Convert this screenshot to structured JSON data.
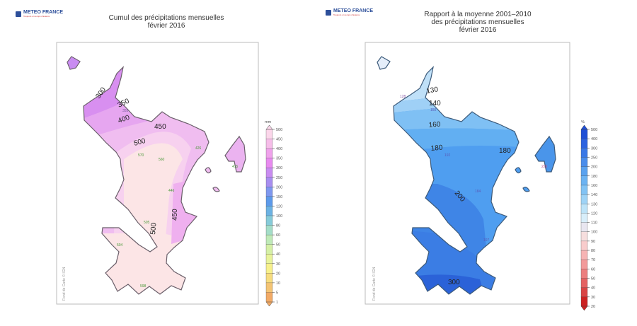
{
  "logo": {
    "name": "METEO FRANCE",
    "tagline": "Toujours un temps d'avance"
  },
  "left_map": {
    "title_line1": "Cumul des précipitations mensuelles",
    "title_line2": "février 2016",
    "legend_unit": "mm",
    "legend_ticks": [
      "500",
      "450",
      "400",
      "350",
      "300",
      "250",
      "200",
      "150",
      "120",
      "100",
      "80",
      "60",
      "50",
      "40",
      "30",
      "20",
      "10",
      "5",
      "1"
    ],
    "legend_colors": [
      "#fbd6ea",
      "#f6bde9",
      "#f0a2ec",
      "#e88af0",
      "#c98cf1",
      "#a88ef0",
      "#7f98ef",
      "#5d9aea",
      "#6cb2e3",
      "#86cbd9",
      "#a4ddc8",
      "#bfeab8",
      "#d5f0a6",
      "#e8f39a",
      "#f7f08b",
      "#f7dc7e",
      "#f4c474",
      "#f2aa66"
    ],
    "contour_labels": [
      "300",
      "350",
      "400",
      "450",
      "500",
      "450",
      "500"
    ],
    "stations": [
      "355",
      "570",
      "560",
      "426",
      "415",
      "446",
      "505",
      "504",
      "598"
    ],
    "credit": "Fond de Carte © IGN"
  },
  "right_map": {
    "title_line1": "Rapport à la moyenne 2001–2010",
    "title_line2": "des précipitations mensuelles",
    "title_line3": "février 2016",
    "legend_unit": "%",
    "legend_ticks": [
      "500",
      "400",
      "300",
      "250",
      "200",
      "180",
      "160",
      "140",
      "130",
      "120",
      "110",
      "100",
      "90",
      "80",
      "70",
      "60",
      "50",
      "40",
      "30",
      "20"
    ],
    "legend_colors": [
      "#1f4fd6",
      "#2c63e0",
      "#3a78e6",
      "#4a8deb",
      "#5aa2ef",
      "#6cb3f2",
      "#82c3f4",
      "#9ed3f6",
      "#bde3f8",
      "#d8eefa",
      "#e8e6f0",
      "#f6dede",
      "#f8cccc",
      "#f6b4b4",
      "#f29a9a",
      "#ec7f7f",
      "#e46262",
      "#d94444",
      "#cc2222"
    ],
    "contour_labels": [
      "130",
      "140",
      "160",
      "180",
      "180",
      "200",
      "300"
    ],
    "stations": [
      "128",
      "150",
      "192",
      "184",
      "226",
      "197"
    ],
    "credit": "Fond de Carte © IGN"
  }
}
